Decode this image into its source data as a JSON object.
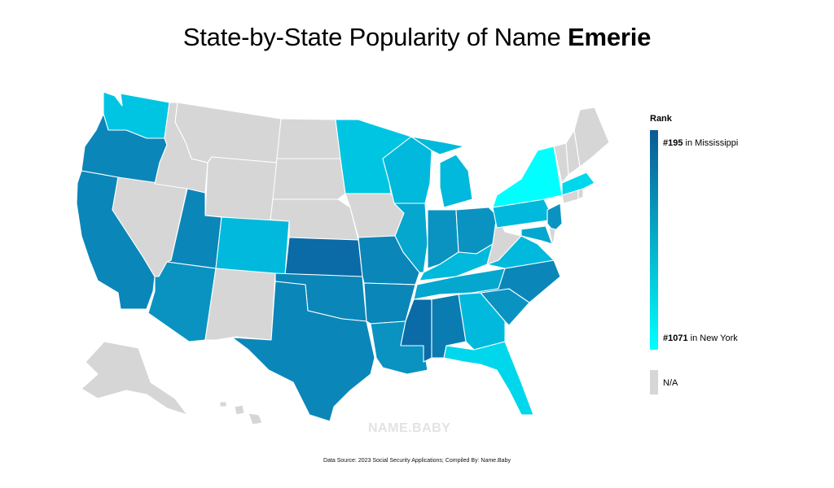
{
  "title": {
    "prefix": "State-by-State Popularity of Name ",
    "name": "Emerie"
  },
  "legend": {
    "title": "Rank",
    "top_rank": "#195",
    "top_state": " in Mississippi",
    "bottom_rank": "#1071",
    "bottom_state": " in New York",
    "na_label": "N/A",
    "colors": {
      "high": "#0b5a95",
      "low": "#00ffff",
      "na": "#d6d6d6"
    }
  },
  "watermark": "NAME.BABY",
  "source": "Data Source: 2023 Social Security Applications; Compiled By: Name.Baby",
  "palette": {
    "c1": "#0a6ba6",
    "c2": "#0a7cb1",
    "c3": "#0b86b9",
    "c4": "#0a93c1",
    "c5": "#05a7cf",
    "c6": "#00b9dc",
    "c7": "#00c5e2",
    "c8": "#00d7ec",
    "c9": "#00ffff",
    "na": "#d6d6d6"
  },
  "states": [
    {
      "id": "WA",
      "color": "c7"
    },
    {
      "id": "OR",
      "color": "c3"
    },
    {
      "id": "CA",
      "color": "c3"
    },
    {
      "id": "NV",
      "color": "na"
    },
    {
      "id": "ID",
      "color": "na"
    },
    {
      "id": "MT",
      "color": "na"
    },
    {
      "id": "WY",
      "color": "na"
    },
    {
      "id": "UT",
      "color": "c3"
    },
    {
      "id": "AZ",
      "color": "c4"
    },
    {
      "id": "CO",
      "color": "c6"
    },
    {
      "id": "NM",
      "color": "na"
    },
    {
      "id": "ND",
      "color": "na"
    },
    {
      "id": "SD",
      "color": "na"
    },
    {
      "id": "NE",
      "color": "na"
    },
    {
      "id": "KS",
      "color": "c1"
    },
    {
      "id": "OK",
      "color": "c3"
    },
    {
      "id": "TX",
      "color": "c3"
    },
    {
      "id": "MN",
      "color": "c7"
    },
    {
      "id": "IA",
      "color": "na"
    },
    {
      "id": "MO",
      "color": "c3"
    },
    {
      "id": "AR",
      "color": "c3"
    },
    {
      "id": "LA",
      "color": "c4"
    },
    {
      "id": "WI",
      "color": "c6"
    },
    {
      "id": "IL",
      "color": "c5"
    },
    {
      "id": "MI",
      "color": "c6"
    },
    {
      "id": "IN",
      "color": "c4"
    },
    {
      "id": "OH",
      "color": "c4"
    },
    {
      "id": "KY",
      "color": "c6"
    },
    {
      "id": "TN",
      "color": "c5"
    },
    {
      "id": "MS",
      "color": "c1"
    },
    {
      "id": "AL",
      "color": "c2"
    },
    {
      "id": "GA",
      "color": "c6"
    },
    {
      "id": "FL",
      "color": "c8"
    },
    {
      "id": "SC",
      "color": "c4"
    },
    {
      "id": "NC",
      "color": "c3"
    },
    {
      "id": "VA",
      "color": "c6"
    },
    {
      "id": "WV",
      "color": "na"
    },
    {
      "id": "PA",
      "color": "c6"
    },
    {
      "id": "NY",
      "color": "c9"
    },
    {
      "id": "NJ",
      "color": "c4"
    },
    {
      "id": "DE",
      "color": "na"
    },
    {
      "id": "MD",
      "color": "c5"
    },
    {
      "id": "CT",
      "color": "na"
    },
    {
      "id": "RI",
      "color": "na"
    },
    {
      "id": "MA",
      "color": "c8"
    },
    {
      "id": "VT",
      "color": "na"
    },
    {
      "id": "NH",
      "color": "na"
    },
    {
      "id": "ME",
      "color": "na"
    },
    {
      "id": "AK",
      "color": "na"
    },
    {
      "id": "HI",
      "color": "na"
    }
  ]
}
